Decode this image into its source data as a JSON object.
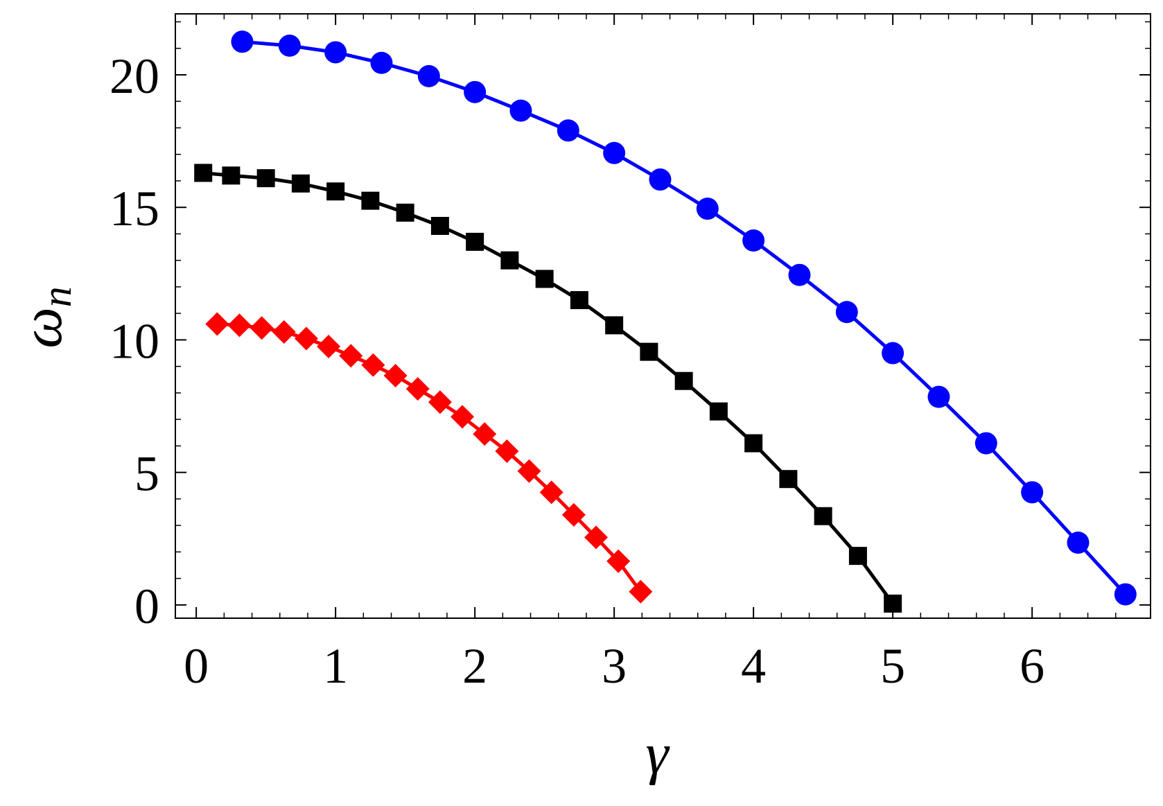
{
  "chart_data": {
    "type": "line",
    "xlabel": "γ",
    "ylabel": "ωn",
    "ylabel_parts": {
      "main": "ω",
      "sub": "n"
    },
    "xlim": [
      -0.15,
      6.85
    ],
    "ylim": [
      -0.5,
      22.3
    ],
    "xticks": [
      "0",
      "1",
      "2",
      "3",
      "4",
      "5",
      "6"
    ],
    "yticks": [
      "0",
      "5",
      "10",
      "15",
      "20"
    ],
    "xtick_values": [
      0,
      1,
      2,
      3,
      4,
      5,
      6
    ],
    "ytick_values": [
      0,
      5,
      10,
      15,
      20
    ],
    "grid": false,
    "frame": true,
    "series": [
      {
        "marker": "diamond",
        "color": "#ff0000",
        "x": [
          0.15,
          0.31,
          0.47,
          0.63,
          0.79,
          0.95,
          1.11,
          1.27,
          1.43,
          1.59,
          1.75,
          1.91,
          2.07,
          2.23,
          2.39,
          2.55,
          2.71,
          2.87,
          3.03,
          3.19
        ],
        "y": [
          10.6,
          10.55,
          10.45,
          10.3,
          10.05,
          9.75,
          9.4,
          9.05,
          8.65,
          8.15,
          7.65,
          7.1,
          6.45,
          5.8,
          5.05,
          4.25,
          3.4,
          2.55,
          1.65,
          0.5
        ]
      },
      {
        "marker": "square",
        "color": "#000000",
        "x": [
          0.05,
          0.25,
          0.5,
          0.75,
          1.0,
          1.25,
          1.5,
          1.75,
          2.0,
          2.25,
          2.5,
          2.75,
          3.0,
          3.25,
          3.5,
          3.75,
          4.0,
          4.25,
          4.5,
          4.75,
          5.0
        ],
        "y": [
          16.3,
          16.2,
          16.1,
          15.9,
          15.6,
          15.25,
          14.8,
          14.3,
          13.7,
          13.0,
          12.3,
          11.5,
          10.55,
          9.55,
          8.45,
          7.3,
          6.1,
          4.75,
          3.35,
          1.85,
          0.05
        ]
      },
      {
        "marker": "circle",
        "color": "#0000ff",
        "x": [
          0.33,
          0.67,
          1.0,
          1.33,
          1.67,
          2.0,
          2.33,
          2.67,
          3.0,
          3.33,
          3.67,
          4.0,
          4.33,
          4.67,
          5.0,
          5.33,
          5.67,
          6.0,
          6.33,
          6.67
        ],
        "y": [
          21.25,
          21.1,
          20.85,
          20.45,
          19.95,
          19.35,
          18.65,
          17.9,
          17.05,
          16.05,
          14.95,
          13.75,
          12.45,
          11.05,
          9.5,
          7.85,
          6.1,
          4.25,
          2.35,
          0.4
        ]
      }
    ]
  }
}
